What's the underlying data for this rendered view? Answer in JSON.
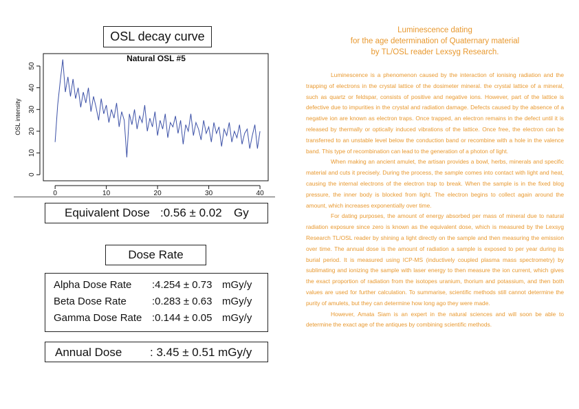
{
  "chart_data": {
    "type": "line",
    "title": "Natural OSL #5",
    "ylabel": "OSL intensity",
    "color": "#3a4fa6",
    "x": [
      0,
      0.5,
      1,
      1.5,
      2,
      2.5,
      3,
      3.5,
      4,
      4.5,
      5,
      5.5,
      6,
      6.5,
      7,
      7.5,
      8,
      8.5,
      9,
      9.5,
      10,
      10.5,
      11,
      11.5,
      12,
      12.5,
      13,
      13.5,
      14,
      14.5,
      15,
      15.5,
      16,
      16.5,
      17,
      17.5,
      18,
      18.5,
      19,
      19.5,
      20,
      20.5,
      21,
      21.5,
      22,
      22.5,
      23,
      23.5,
      24,
      24.5,
      25,
      25.5,
      26,
      26.5,
      27,
      27.5,
      28,
      28.5,
      29,
      29.5,
      30,
      30.5,
      31,
      31.5,
      32,
      32.5,
      33,
      33.5,
      34,
      34.5,
      35,
      35.5,
      36,
      36.5,
      37,
      37.5,
      38,
      38.5,
      39,
      39.5,
      40
    ],
    "values": [
      15,
      32,
      43,
      53,
      38,
      45,
      36,
      44,
      35,
      40,
      31,
      38,
      33,
      40,
      29,
      36,
      31,
      25,
      35,
      28,
      32,
      24,
      30,
      26,
      33,
      22,
      29,
      25,
      8,
      28,
      23,
      30,
      21,
      27,
      24,
      32,
      20,
      26,
      22,
      29,
      18,
      25,
      21,
      28,
      17,
      24,
      22,
      27,
      19,
      25,
      14,
      23,
      20,
      28,
      18,
      24,
      21,
      16,
      25,
      19,
      22,
      15,
      24,
      19,
      22,
      13,
      21,
      18,
      24,
      15,
      20,
      17,
      23,
      14,
      19,
      21,
      12,
      18,
      23,
      12,
      20
    ],
    "xlim": [
      -2.3,
      41.6
    ],
    "xticks": [
      0,
      10,
      20,
      30,
      40
    ],
    "ylim": [
      -2.8,
      55.7
    ],
    "yticks": [
      0,
      10,
      20,
      30,
      40,
      50
    ]
  },
  "header": {
    "title": "OSL decay curve"
  },
  "equivalent": {
    "label": "Equivalent Dose",
    "value": ":0.56 ± 0.02",
    "unit": "Gy"
  },
  "dose_rate": {
    "title": "Dose Rate",
    "rows": [
      [
        "Alpha Dose Rate",
        ":4.254 ± 0.73",
        "mGy/y"
      ],
      [
        "Beta Dose Rate",
        ":0.283 ± 0.63",
        "mGy/y"
      ],
      [
        "Gamma Dose Rate",
        ":0.144 ± 0.05",
        "mGy/y"
      ]
    ]
  },
  "annual": {
    "label": "Annual Dose",
    "value": ": 3.45 ± 0.51 mGy/y"
  },
  "article": {
    "title": [
      "Luminescence dating",
      "for the age determination of Quaternary material",
      "by TL/OSL reader Lexsyg Research."
    ],
    "paragraphs": [
      "Luminescence is a phenomenon caused by the interaction of ionising radiation and the trapping of electrons in the crystal lattice of the dosimeter mineral. the crystal lattice of a mineral, such as quartz or feldspar, consists of positive and negative ions. However, part of the lattice is defective due to impurities in the crystal and radiation damage. Defects caused by the absence of a negative ion are known as electron traps. Once trapped, an electron remains in the defect until it is released by thermally or optically induced vibrations of the lattice. Once free, the electron can be transferred to an unstable level below the conduction band or recombine with a hole in the valence band. This type of recombination can lead to the generation of a photon of light.",
      "When making an ancient amulet, the artisan provides a bowl, herbs, minerals and specific material and cuts it precisely. During the process, the sample comes into contact with light and heat, causing the internal electrons of the electron trap to break. When the sample is in the fixed blog pressure, the inner body is blocked from light. The electron begins to collect again around the amount, which increases exponentially over time.",
      "For dating purposes, the amount of energy absorbed per mass of mineral due to natural radiation exposure since zero is known as the equivalent dose, which is measured by the Lexsyg Research TL/OSL reader by shining a light directly on the sample and then measuring the emission over time. The annual dose is the amount of radiation a sample is exposed to per year during its burial period. It is measured using ICP-MS (inductively coupled plasma mass spectrometry) by sublimating and ionizing the sample with laser energy to then measure the ion current, which gives the exact proportion of radiation from the isotopes uranium, thorium and potassium, and then both values are used for further calculation. To summarise, scientific methods still cannot determine the purity of amulets, but they can determine how long ago they were made.",
      "However, Amata Siam is an expert in the natural sciences and will soon be able to determine the exact age of the antiques by combining scientific methods."
    ]
  }
}
